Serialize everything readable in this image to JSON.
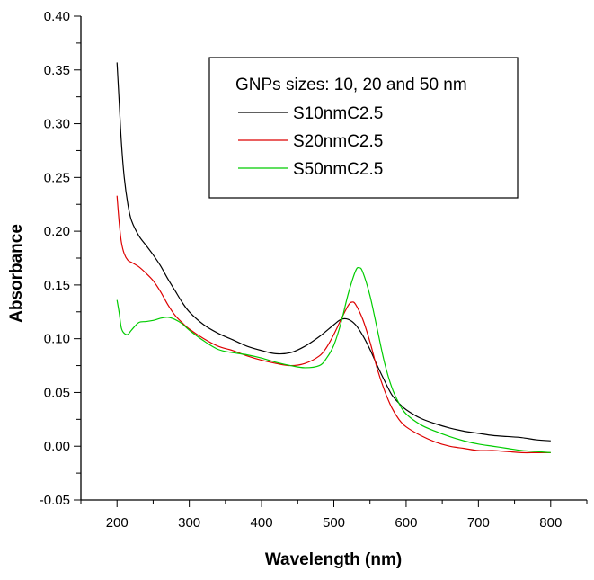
{
  "chart_data": {
    "type": "line",
    "title": "",
    "xlabel": "Wavelength (nm)",
    "ylabel": "Absorbance",
    "xlim": [
      150,
      850
    ],
    "ylim": [
      -0.05,
      0.4
    ],
    "xticks": [
      200,
      300,
      400,
      500,
      600,
      700,
      800
    ],
    "yticks": [
      -0.05,
      0.0,
      0.05,
      0.1,
      0.15,
      0.2,
      0.25,
      0.3,
      0.35,
      0.4
    ],
    "xtick_labels": [
      "200",
      "300",
      "400",
      "500",
      "600",
      "700",
      "800"
    ],
    "ytick_labels": [
      "-0.05",
      "0.00",
      "0.05",
      "0.10",
      "0.15",
      "0.20",
      "0.25",
      "0.30",
      "0.35",
      "0.40"
    ],
    "grid": false,
    "legend": {
      "title": "GNPs sizes: 10, 20 and 50 nm",
      "placement": "top-right"
    },
    "series": [
      {
        "name": "S10nmC2.5",
        "color": "#000000",
        "x": [
          200,
          203,
          206,
          210,
          215,
          220,
          230,
          240,
          250,
          260,
          270,
          280,
          290,
          300,
          320,
          340,
          360,
          380,
          400,
          420,
          440,
          460,
          480,
          500,
          510,
          520,
          530,
          540,
          550,
          560,
          570,
          580,
          590,
          600,
          620,
          640,
          660,
          680,
          700,
          720,
          740,
          760,
          780,
          800
        ],
        "y": [
          0.357,
          0.32,
          0.283,
          0.25,
          0.225,
          0.21,
          0.196,
          0.187,
          0.178,
          0.168,
          0.156,
          0.145,
          0.134,
          0.125,
          0.113,
          0.105,
          0.099,
          0.093,
          0.089,
          0.086,
          0.087,
          0.093,
          0.102,
          0.113,
          0.118,
          0.118,
          0.113,
          0.103,
          0.09,
          0.075,
          0.061,
          0.048,
          0.04,
          0.034,
          0.026,
          0.021,
          0.017,
          0.014,
          0.012,
          0.01,
          0.009,
          0.008,
          0.006,
          0.005
        ]
      },
      {
        "name": "S20nmC2.5",
        "color": "#dd0000",
        "x": [
          200,
          203,
          206,
          210,
          215,
          220,
          230,
          240,
          250,
          260,
          270,
          280,
          290,
          300,
          320,
          340,
          360,
          380,
          400,
          420,
          440,
          460,
          480,
          490,
          500,
          510,
          520,
          525,
          530,
          540,
          550,
          560,
          570,
          580,
          590,
          600,
          620,
          640,
          660,
          680,
          700,
          720,
          740,
          760,
          780,
          800
        ],
        "y": [
          0.233,
          0.208,
          0.19,
          0.179,
          0.173,
          0.171,
          0.167,
          0.161,
          0.154,
          0.144,
          0.132,
          0.122,
          0.115,
          0.109,
          0.1,
          0.093,
          0.089,
          0.084,
          0.08,
          0.077,
          0.075,
          0.077,
          0.084,
          0.092,
          0.104,
          0.118,
          0.131,
          0.134,
          0.132,
          0.118,
          0.097,
          0.072,
          0.052,
          0.036,
          0.025,
          0.018,
          0.01,
          0.004,
          0.0,
          -0.002,
          -0.004,
          -0.004,
          -0.005,
          -0.006,
          -0.006,
          -0.006
        ]
      },
      {
        "name": "S50nmC2.5",
        "color": "#00cc00",
        "x": [
          200,
          203,
          206,
          210,
          215,
          220,
          230,
          240,
          250,
          260,
          270,
          280,
          290,
          300,
          320,
          340,
          360,
          380,
          400,
          420,
          440,
          460,
          480,
          490,
          500,
          510,
          520,
          530,
          535,
          540,
          550,
          560,
          570,
          580,
          590,
          600,
          620,
          640,
          660,
          680,
          700,
          720,
          740,
          760,
          780,
          800
        ],
        "y": [
          0.136,
          0.124,
          0.11,
          0.105,
          0.104,
          0.108,
          0.115,
          0.116,
          0.117,
          0.119,
          0.12,
          0.118,
          0.114,
          0.108,
          0.098,
          0.09,
          0.087,
          0.085,
          0.082,
          0.078,
          0.075,
          0.073,
          0.075,
          0.082,
          0.094,
          0.115,
          0.142,
          0.163,
          0.166,
          0.162,
          0.14,
          0.109,
          0.078,
          0.055,
          0.04,
          0.03,
          0.02,
          0.014,
          0.009,
          0.005,
          0.002,
          0.0,
          -0.002,
          -0.004,
          -0.005,
          -0.006
        ]
      }
    ]
  }
}
